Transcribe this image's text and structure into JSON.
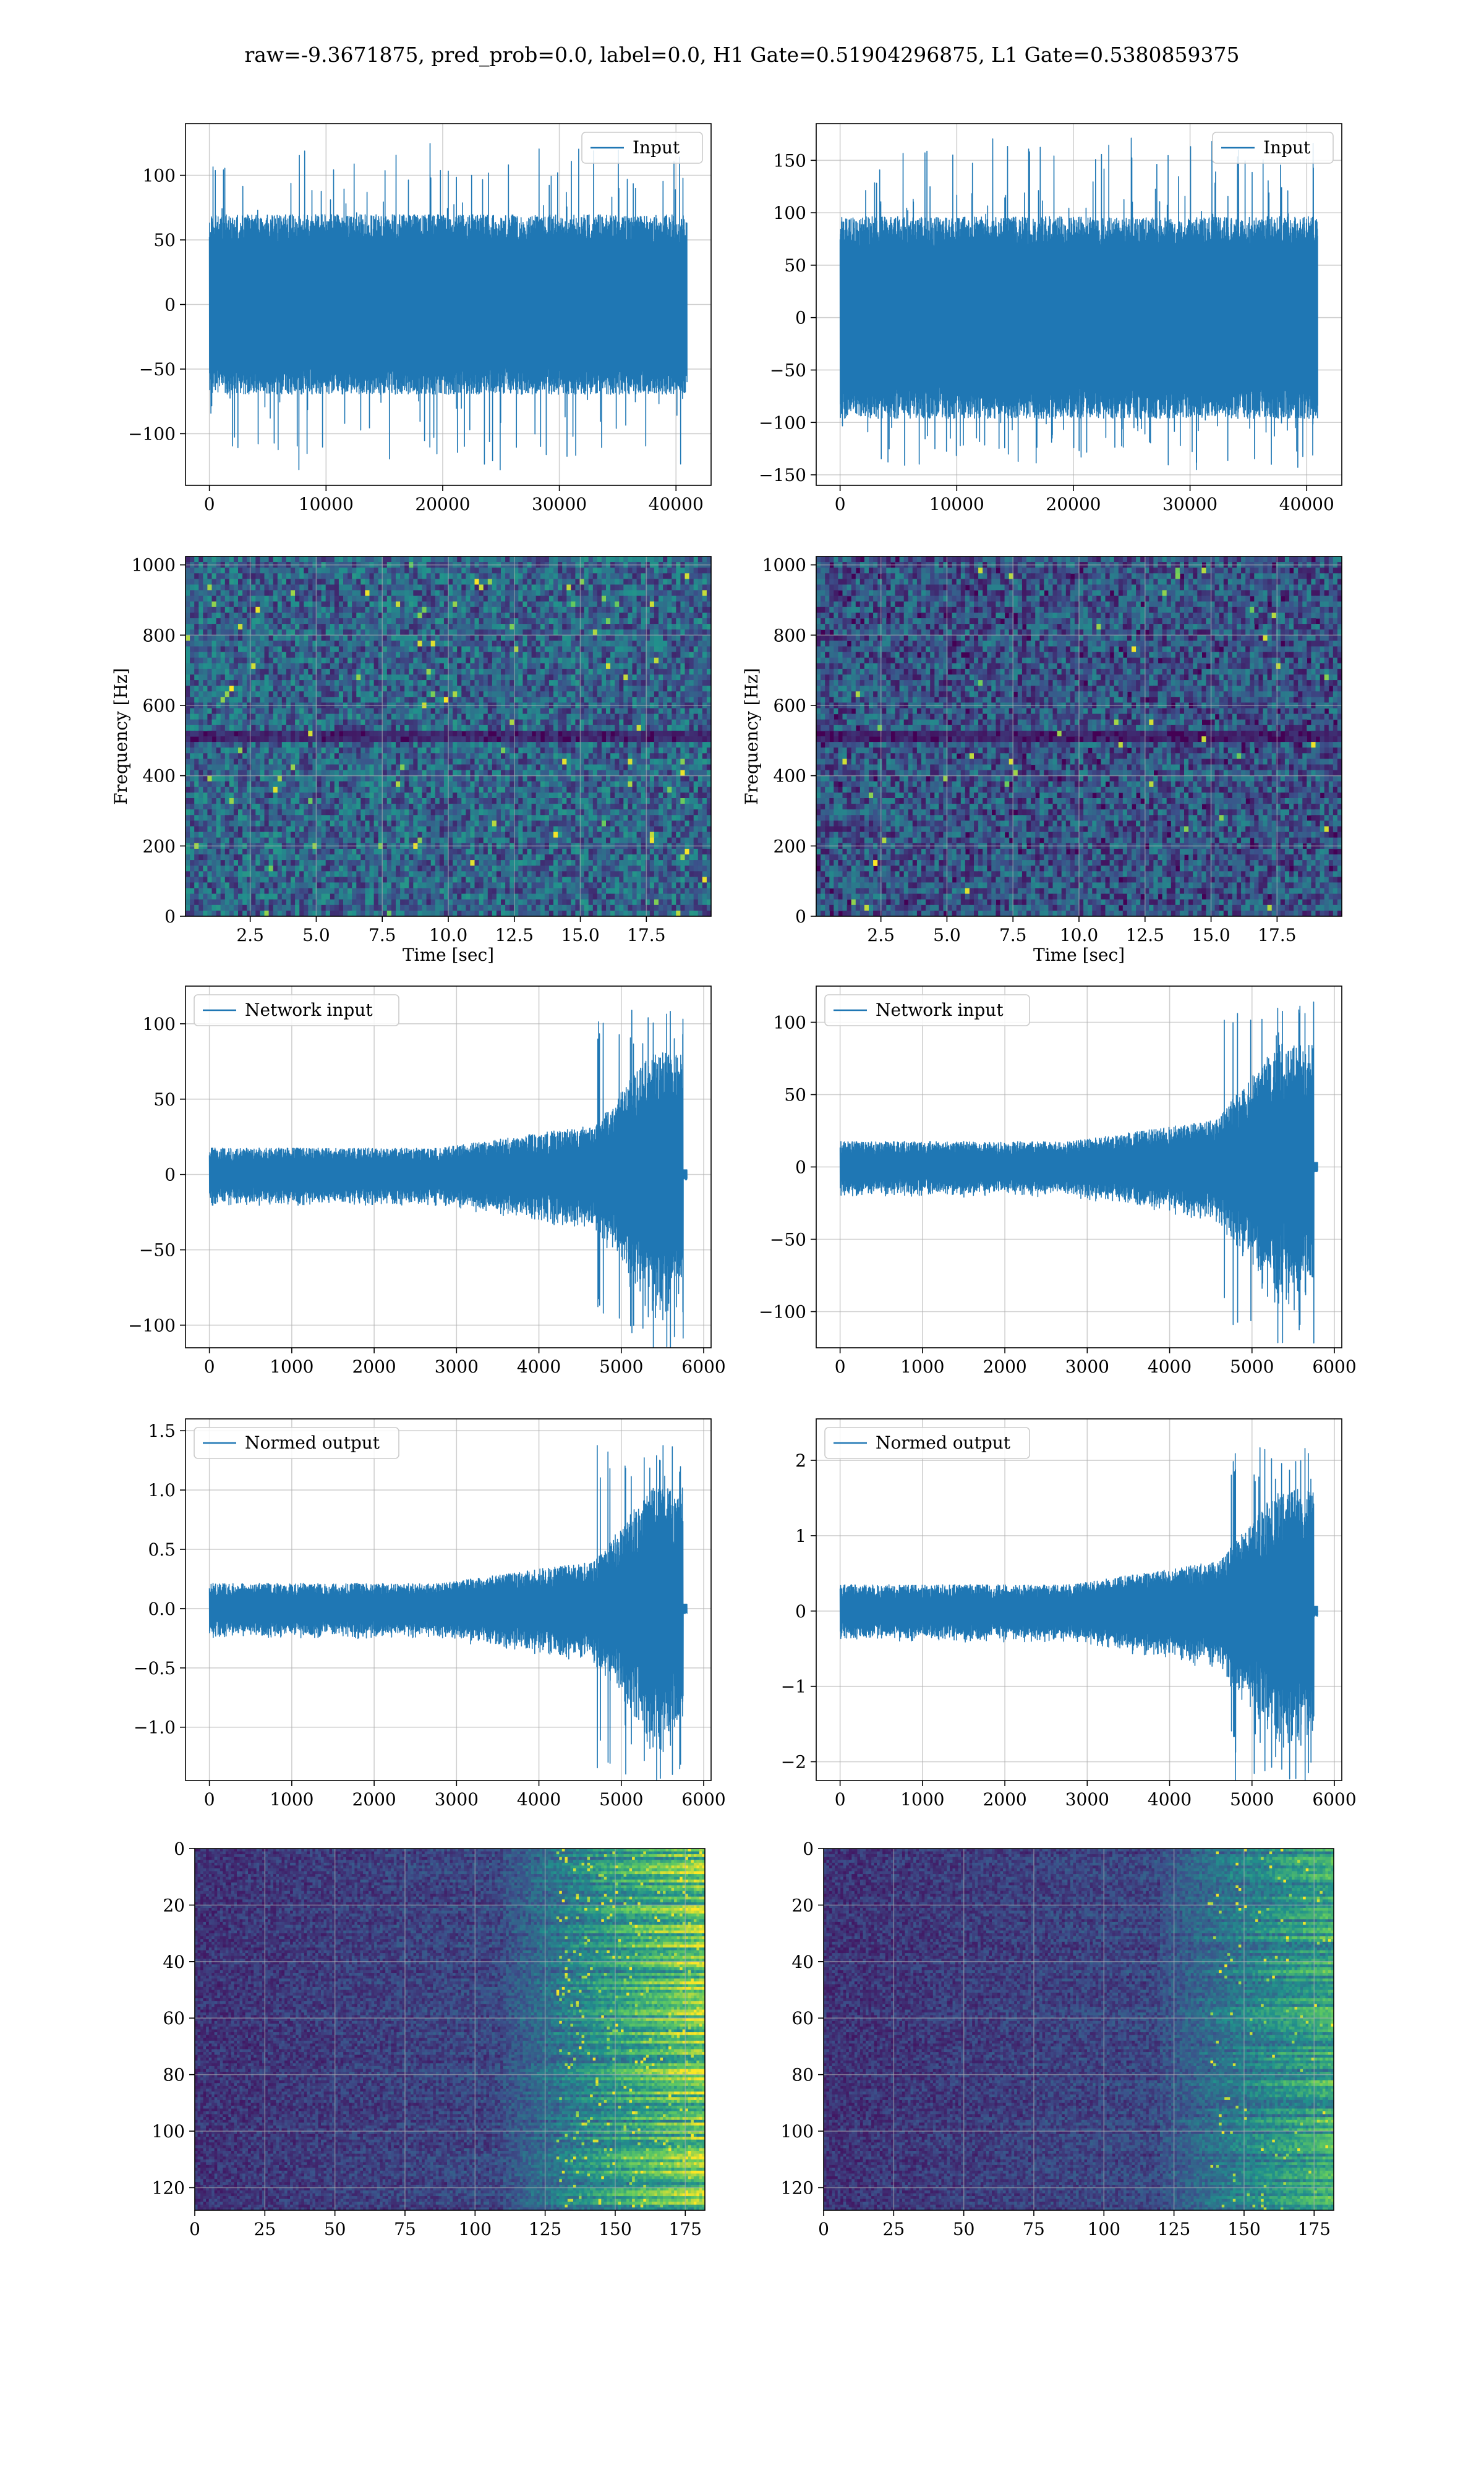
{
  "suptitle": "raw=-9.3671875, pred_prob=0.0, label=0.0, H1 Gate=0.51904296875, L1 Gate=0.5380859375",
  "colors": {
    "line": "#1f77b4",
    "grid": "#b0b0b0",
    "spine": "#000000",
    "viridis_dark": "#440154",
    "viridis_mid": "#21918c",
    "viridis_bright": "#fde725"
  },
  "chart_data": [
    {
      "id": "h1-input",
      "type": "line",
      "legend": [
        "Input"
      ],
      "legend_loc": "upper right",
      "grid": true,
      "x_ticks": [
        0,
        10000,
        20000,
        30000,
        40000
      ],
      "y_ticks": [
        -100,
        -50,
        0,
        50,
        100
      ],
      "xlim": [
        -2048,
        43008
      ],
      "ylim": [
        -140,
        140
      ],
      "series": [
        {
          "kind": "noise",
          "n": 40960,
          "spread": 65,
          "peak_pos": 125,
          "peak_neg": -128
        }
      ]
    },
    {
      "id": "l1-input",
      "type": "line",
      "legend": [
        "Input"
      ],
      "legend_loc": "upper right",
      "grid": true,
      "x_ticks": [
        0,
        10000,
        20000,
        30000,
        40000
      ],
      "y_ticks": [
        -150,
        -100,
        -50,
        0,
        50,
        100,
        150
      ],
      "xlim": [
        -2048,
        43008
      ],
      "ylim": [
        -160,
        185
      ],
      "series": [
        {
          "kind": "noise",
          "n": 40960,
          "spread": 90,
          "peak_pos": 172,
          "peak_neg": -145
        }
      ]
    },
    {
      "id": "h1-spectrogram",
      "type": "heatmap",
      "grid": true,
      "xlabel": "Time [sec]",
      "ylabel": "Frequency [Hz]",
      "x_ticks": [
        2.5,
        5.0,
        7.5,
        10.0,
        12.5,
        15.0,
        17.5
      ],
      "y_ticks": [
        0,
        200,
        400,
        600,
        800,
        1000
      ],
      "xlim": [
        0.05,
        19.95
      ],
      "ylim": [
        0,
        1024
      ],
      "cells": {
        "nx": 120,
        "ny": 64,
        "mean": 0.32,
        "sparkle": 0.012,
        "dark_rows": [
          31,
          32
        ]
      }
    },
    {
      "id": "l1-spectrogram",
      "type": "heatmap",
      "grid": true,
      "xlabel": "Time [sec]",
      "ylabel": "Frequency [Hz]",
      "x_ticks": [
        2.5,
        5.0,
        7.5,
        10.0,
        12.5,
        15.0,
        17.5
      ],
      "y_ticks": [
        0,
        200,
        400,
        600,
        800,
        1000
      ],
      "xlim": [
        0.05,
        19.95
      ],
      "ylim": [
        0,
        1024
      ],
      "cells": {
        "nx": 120,
        "ny": 64,
        "mean": 0.26,
        "sparkle": 0.006,
        "dark_rows": [
          31,
          32
        ]
      }
    },
    {
      "id": "h1-network-input",
      "type": "line",
      "legend": [
        "Network input"
      ],
      "legend_loc": "upper left",
      "grid": true,
      "x_ticks": [
        0,
        1000,
        2000,
        3000,
        4000,
        5000,
        6000
      ],
      "y_ticks": [
        -100,
        -50,
        0,
        50,
        100
      ],
      "xlim": [
        -290,
        6090
      ],
      "ylim": [
        -115,
        125
      ],
      "series": [
        {
          "kind": "burst",
          "n": 5760,
          "base": 14,
          "burst_start": 4700,
          "burst_end": 5750,
          "burst_amp": 95,
          "tail_end": 5800
        }
      ]
    },
    {
      "id": "l1-network-input",
      "type": "line",
      "legend": [
        "Network input"
      ],
      "legend_loc": "upper left",
      "grid": true,
      "x_ticks": [
        0,
        1000,
        2000,
        3000,
        4000,
        5000,
        6000
      ],
      "y_ticks": [
        -100,
        -50,
        0,
        50,
        100
      ],
      "xlim": [
        -290,
        6090
      ],
      "ylim": [
        -125,
        125
      ],
      "series": [
        {
          "kind": "burst",
          "n": 5760,
          "base": 14,
          "burst_start": 4600,
          "burst_end": 5750,
          "burst_amp": 100,
          "tail_end": 5800
        }
      ]
    },
    {
      "id": "h1-normed-output",
      "type": "line",
      "legend": [
        "Normed output"
      ],
      "legend_loc": "upper left",
      "grid": true,
      "x_ticks": [
        0,
        1000,
        2000,
        3000,
        4000,
        5000,
        6000
      ],
      "y_ticks": [
        -1.0,
        -0.5,
        0.0,
        0.5,
        1.0,
        1.5
      ],
      "xlim": [
        -290,
        6090
      ],
      "ylim": [
        -1.45,
        1.6
      ],
      "series": [
        {
          "kind": "burst",
          "n": 5760,
          "base": 0.17,
          "burst_start": 4700,
          "burst_end": 5750,
          "burst_amp": 1.2,
          "tail_end": 5800
        }
      ]
    },
    {
      "id": "l1-normed-output",
      "type": "line",
      "legend": [
        "Normed output"
      ],
      "legend_loc": "upper left",
      "grid": true,
      "x_ticks": [
        0,
        1000,
        2000,
        3000,
        4000,
        5000,
        6000
      ],
      "y_ticks": [
        -2,
        -1,
        0,
        1,
        2
      ],
      "xlim": [
        -290,
        6090
      ],
      "ylim": [
        -2.25,
        2.55
      ],
      "series": [
        {
          "kind": "burst",
          "n": 5760,
          "base": 0.28,
          "burst_start": 4600,
          "burst_end": 5750,
          "burst_amp": 1.9,
          "tail_end": 5800
        }
      ]
    },
    {
      "id": "h1-feature-map",
      "type": "heatmap",
      "grid": true,
      "x_ticks": [
        0,
        25,
        50,
        75,
        100,
        125,
        150,
        175
      ],
      "y_ticks": [
        0,
        20,
        40,
        60,
        80,
        100,
        120
      ],
      "xlim": [
        0,
        182
      ],
      "ylim": [
        128,
        0
      ],
      "cells": {
        "nx": 182,
        "ny": 128,
        "onset": 110,
        "intensity": 0.62,
        "sparkle": 0.05
      }
    },
    {
      "id": "l1-feature-map",
      "type": "heatmap",
      "grid": true,
      "x_ticks": [
        0,
        25,
        50,
        75,
        100,
        125,
        150,
        175
      ],
      "y_ticks": [
        0,
        20,
        40,
        60,
        80,
        100,
        120
      ],
      "xlim": [
        0,
        182
      ],
      "ylim": [
        128,
        0
      ],
      "cells": {
        "nx": 182,
        "ny": 128,
        "onset": 120,
        "intensity": 0.42,
        "sparkle": 0.02
      }
    }
  ]
}
